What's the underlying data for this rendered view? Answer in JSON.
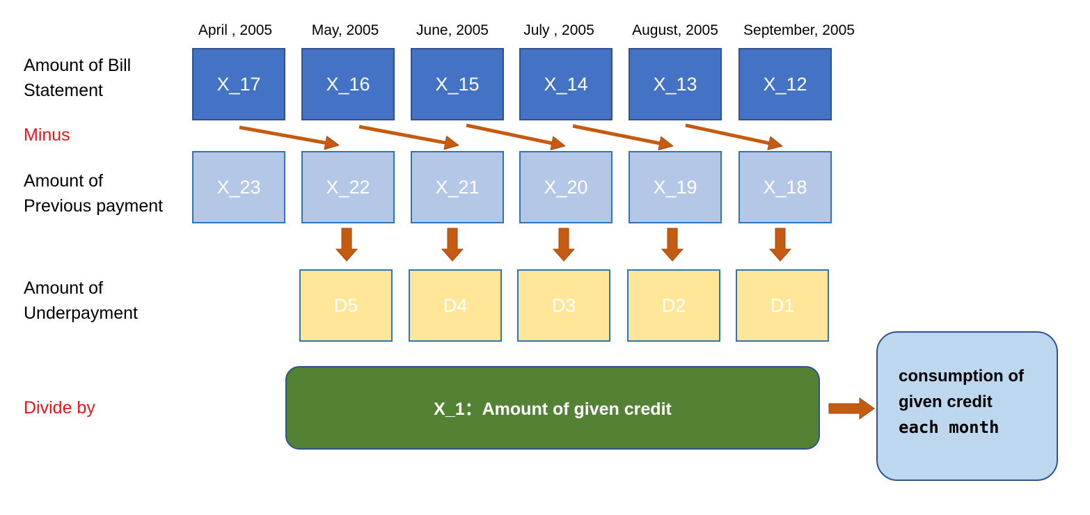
{
  "months": [
    "April , 2005",
    "May, 2005",
    "June, 2005",
    "July , 2005",
    "August, 2005",
    "September, 2005"
  ],
  "row_labels": {
    "bill_line1": "Amount of Bill",
    "bill_line2": "Statement",
    "minus": "Minus",
    "payment_line1": "Amount of",
    "payment_line2": "Previous payment",
    "under_line1": "Amount of",
    "under_line2": "Underpayment",
    "divide": "Divide by"
  },
  "bill_boxes": [
    "X_17",
    "X_16",
    "X_15",
    "X_14",
    "X_13",
    "X_12"
  ],
  "payment_boxes": [
    "X_23",
    "X_22",
    "X_21",
    "X_20",
    "X_19",
    "X_18"
  ],
  "underpayment_boxes": [
    "D5",
    "D4",
    "D3",
    "D2",
    "D1"
  ],
  "credit_box": "X_1：Amount of given credit",
  "result_box": {
    "line1": "consumption of",
    "line2": "given credit",
    "line3": "each month"
  },
  "colors": {
    "bill": "#4472c4",
    "payment": "#b4c7e7",
    "underpayment": "#ffe699",
    "credit": "#548235",
    "result": "#bdd7ee",
    "arrow": "#c55a11",
    "label_red": "#e8161b"
  }
}
